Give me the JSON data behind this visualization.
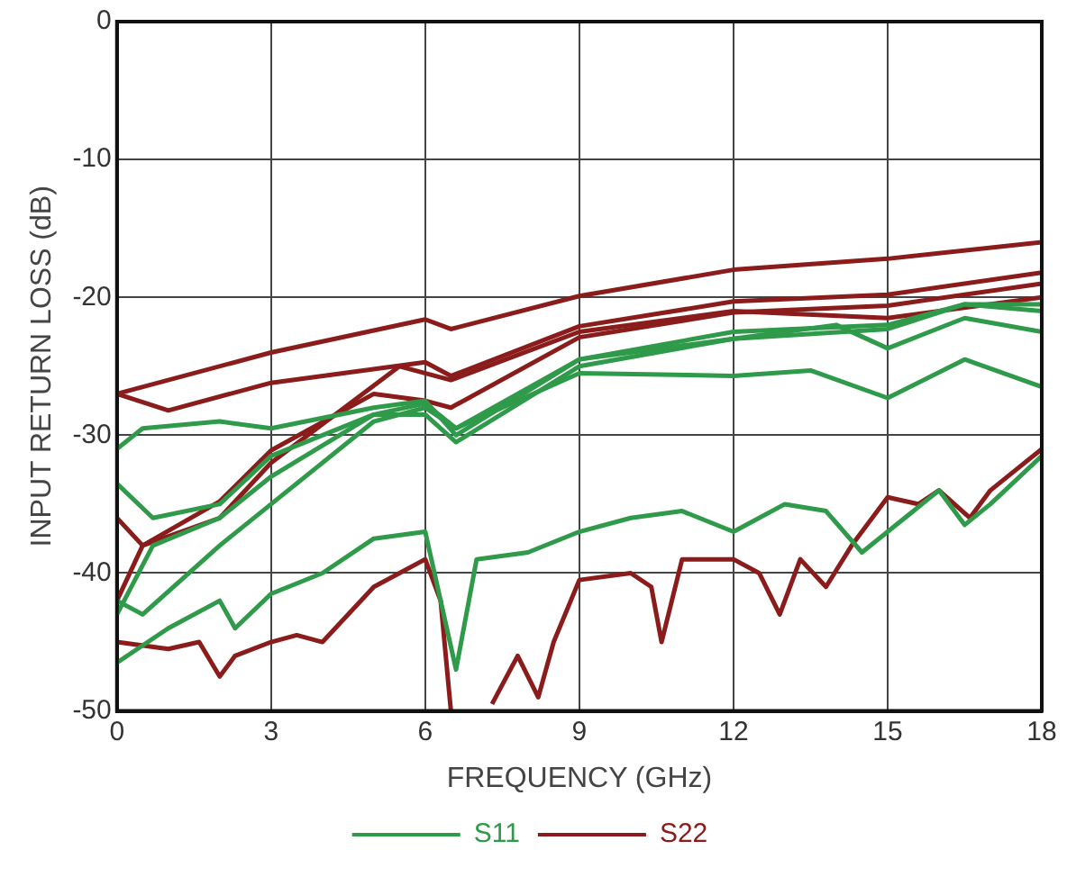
{
  "chart_data": {
    "type": "line",
    "xlabel": "FREQUENCY (GHz)",
    "ylabel": "INPUT RETURN LOSS (dB)",
    "xlim": [
      0,
      18
    ],
    "xticks": [
      0,
      3,
      6,
      9,
      12,
      15,
      18
    ],
    "ylim": [
      -50,
      0
    ],
    "yticks": [
      -50,
      -40,
      -30,
      -20,
      -10,
      0
    ],
    "grid": true,
    "legend": "bottom",
    "marker": "none",
    "line_style": "solid",
    "series": [
      {
        "name": "S11",
        "color": "#2e9a4a",
        "x": [
          0,
          0.5,
          2,
          3,
          5,
          6,
          6.6,
          9,
          12,
          14,
          15,
          16.5,
          18
        ],
        "values": [
          -31,
          -29.5,
          -29,
          -29.5,
          -28,
          -27.5,
          -30,
          -24.5,
          -23,
          -22,
          -23.7,
          -21.5,
          -22.5
        ]
      },
      {
        "color": "#2e9a4a",
        "x": [
          0,
          0.7,
          2,
          3,
          5,
          6,
          6.6,
          9,
          12,
          15,
          16.5,
          18
        ],
        "values": [
          -33.5,
          -36,
          -35,
          -31.5,
          -28.5,
          -27.7,
          -29.5,
          -24.5,
          -22.5,
          -22,
          -20.5,
          -21
        ]
      },
      {
        "color": "#2e9a4a",
        "x": [
          0,
          0.7,
          2,
          3,
          5,
          6,
          6.6,
          9,
          12,
          15,
          16.5,
          18
        ],
        "values": [
          -43,
          -38,
          -36,
          -33,
          -28.5,
          -28.5,
          -30.5,
          -25,
          -23,
          -22.3,
          -20.5,
          -20.5
        ]
      },
      {
        "color": "#2e9a4a",
        "x": [
          0,
          0.5,
          2,
          3,
          5,
          6,
          6.6,
          9,
          12,
          13.5,
          15,
          16.5,
          18
        ],
        "values": [
          -42,
          -43,
          -38,
          -35,
          -29,
          -28,
          -29.5,
          -25.5,
          -25.7,
          -25.3,
          -27.3,
          -24.5,
          -26.5
        ]
      },
      {
        "color": "#2e9a4a",
        "x": [
          0,
          1,
          2,
          2.3,
          3,
          4,
          5,
          6,
          6.6,
          7,
          8,
          9,
          10,
          11,
          12,
          13,
          13.8,
          14.5,
          15,
          16,
          16.5,
          17,
          18
        ],
        "values": [
          -46.5,
          -44,
          -42,
          -44,
          -41.5,
          -40,
          -37.5,
          -37,
          -47,
          -39,
          -38.5,
          -37,
          -36,
          -35.5,
          -37,
          -35,
          -35.5,
          -38.5,
          -37,
          -34,
          -36.5,
          -35,
          -31.5
        ]
      },
      {
        "name": "S22",
        "color": "#8b1c1c",
        "x": [
          0,
          3,
          6,
          6.5,
          9,
          12,
          15,
          18
        ],
        "values": [
          -27,
          -24,
          -21.6,
          -22.3,
          -19.9,
          -18,
          -17.2,
          -16
        ]
      },
      {
        "color": "#8b1c1c",
        "x": [
          0,
          1,
          3,
          6,
          6.5,
          9,
          12,
          15,
          18
        ],
        "values": [
          -27,
          -28.2,
          -26.2,
          -24.7,
          -25.7,
          -22.1,
          -20.3,
          -19.8,
          -18.2
        ]
      },
      {
        "color": "#8b1c1c",
        "x": [
          0,
          0.5,
          2,
          3,
          5,
          6,
          6.5,
          9,
          12,
          15,
          18
        ],
        "values": [
          -36,
          -38,
          -34.8,
          -31.1,
          -27,
          -27.5,
          -28,
          -22.9,
          -21.1,
          -20.6,
          -19
        ]
      },
      {
        "color": "#8b1c1c",
        "x": [
          0,
          0.5,
          2,
          3,
          5.5,
          6.5,
          9,
          12,
          15,
          18
        ],
        "values": [
          -42,
          -38,
          -36,
          -32,
          -25,
          -26,
          -22.5,
          -21,
          -21.5,
          -20
        ]
      },
      {
        "color": "#8b1c1c",
        "x": [
          0,
          1,
          1.6,
          2,
          2.3,
          3,
          3.5,
          4,
          5,
          5.5,
          6,
          6.3,
          6.5,
          6.8,
          7.3,
          7.8,
          8.2,
          8.5,
          9,
          10,
          10.4,
          10.6,
          11,
          12,
          12.5,
          12.9,
          13.3,
          13.8,
          14.3,
          15,
          15.6,
          16,
          16.6,
          17,
          18
        ],
        "values": [
          -45,
          -45.5,
          -45,
          -47.5,
          -46,
          -45,
          -44.5,
          -45,
          -41,
          -40,
          -39,
          -42,
          -50,
          null,
          -49.5,
          -46,
          -49,
          -45,
          -40.5,
          -40,
          -41,
          -45,
          -39,
          -39,
          -40,
          -43,
          -39,
          -41,
          -38,
          -34.5,
          -35,
          -34,
          -36,
          -34,
          -31
        ]
      }
    ]
  }
}
